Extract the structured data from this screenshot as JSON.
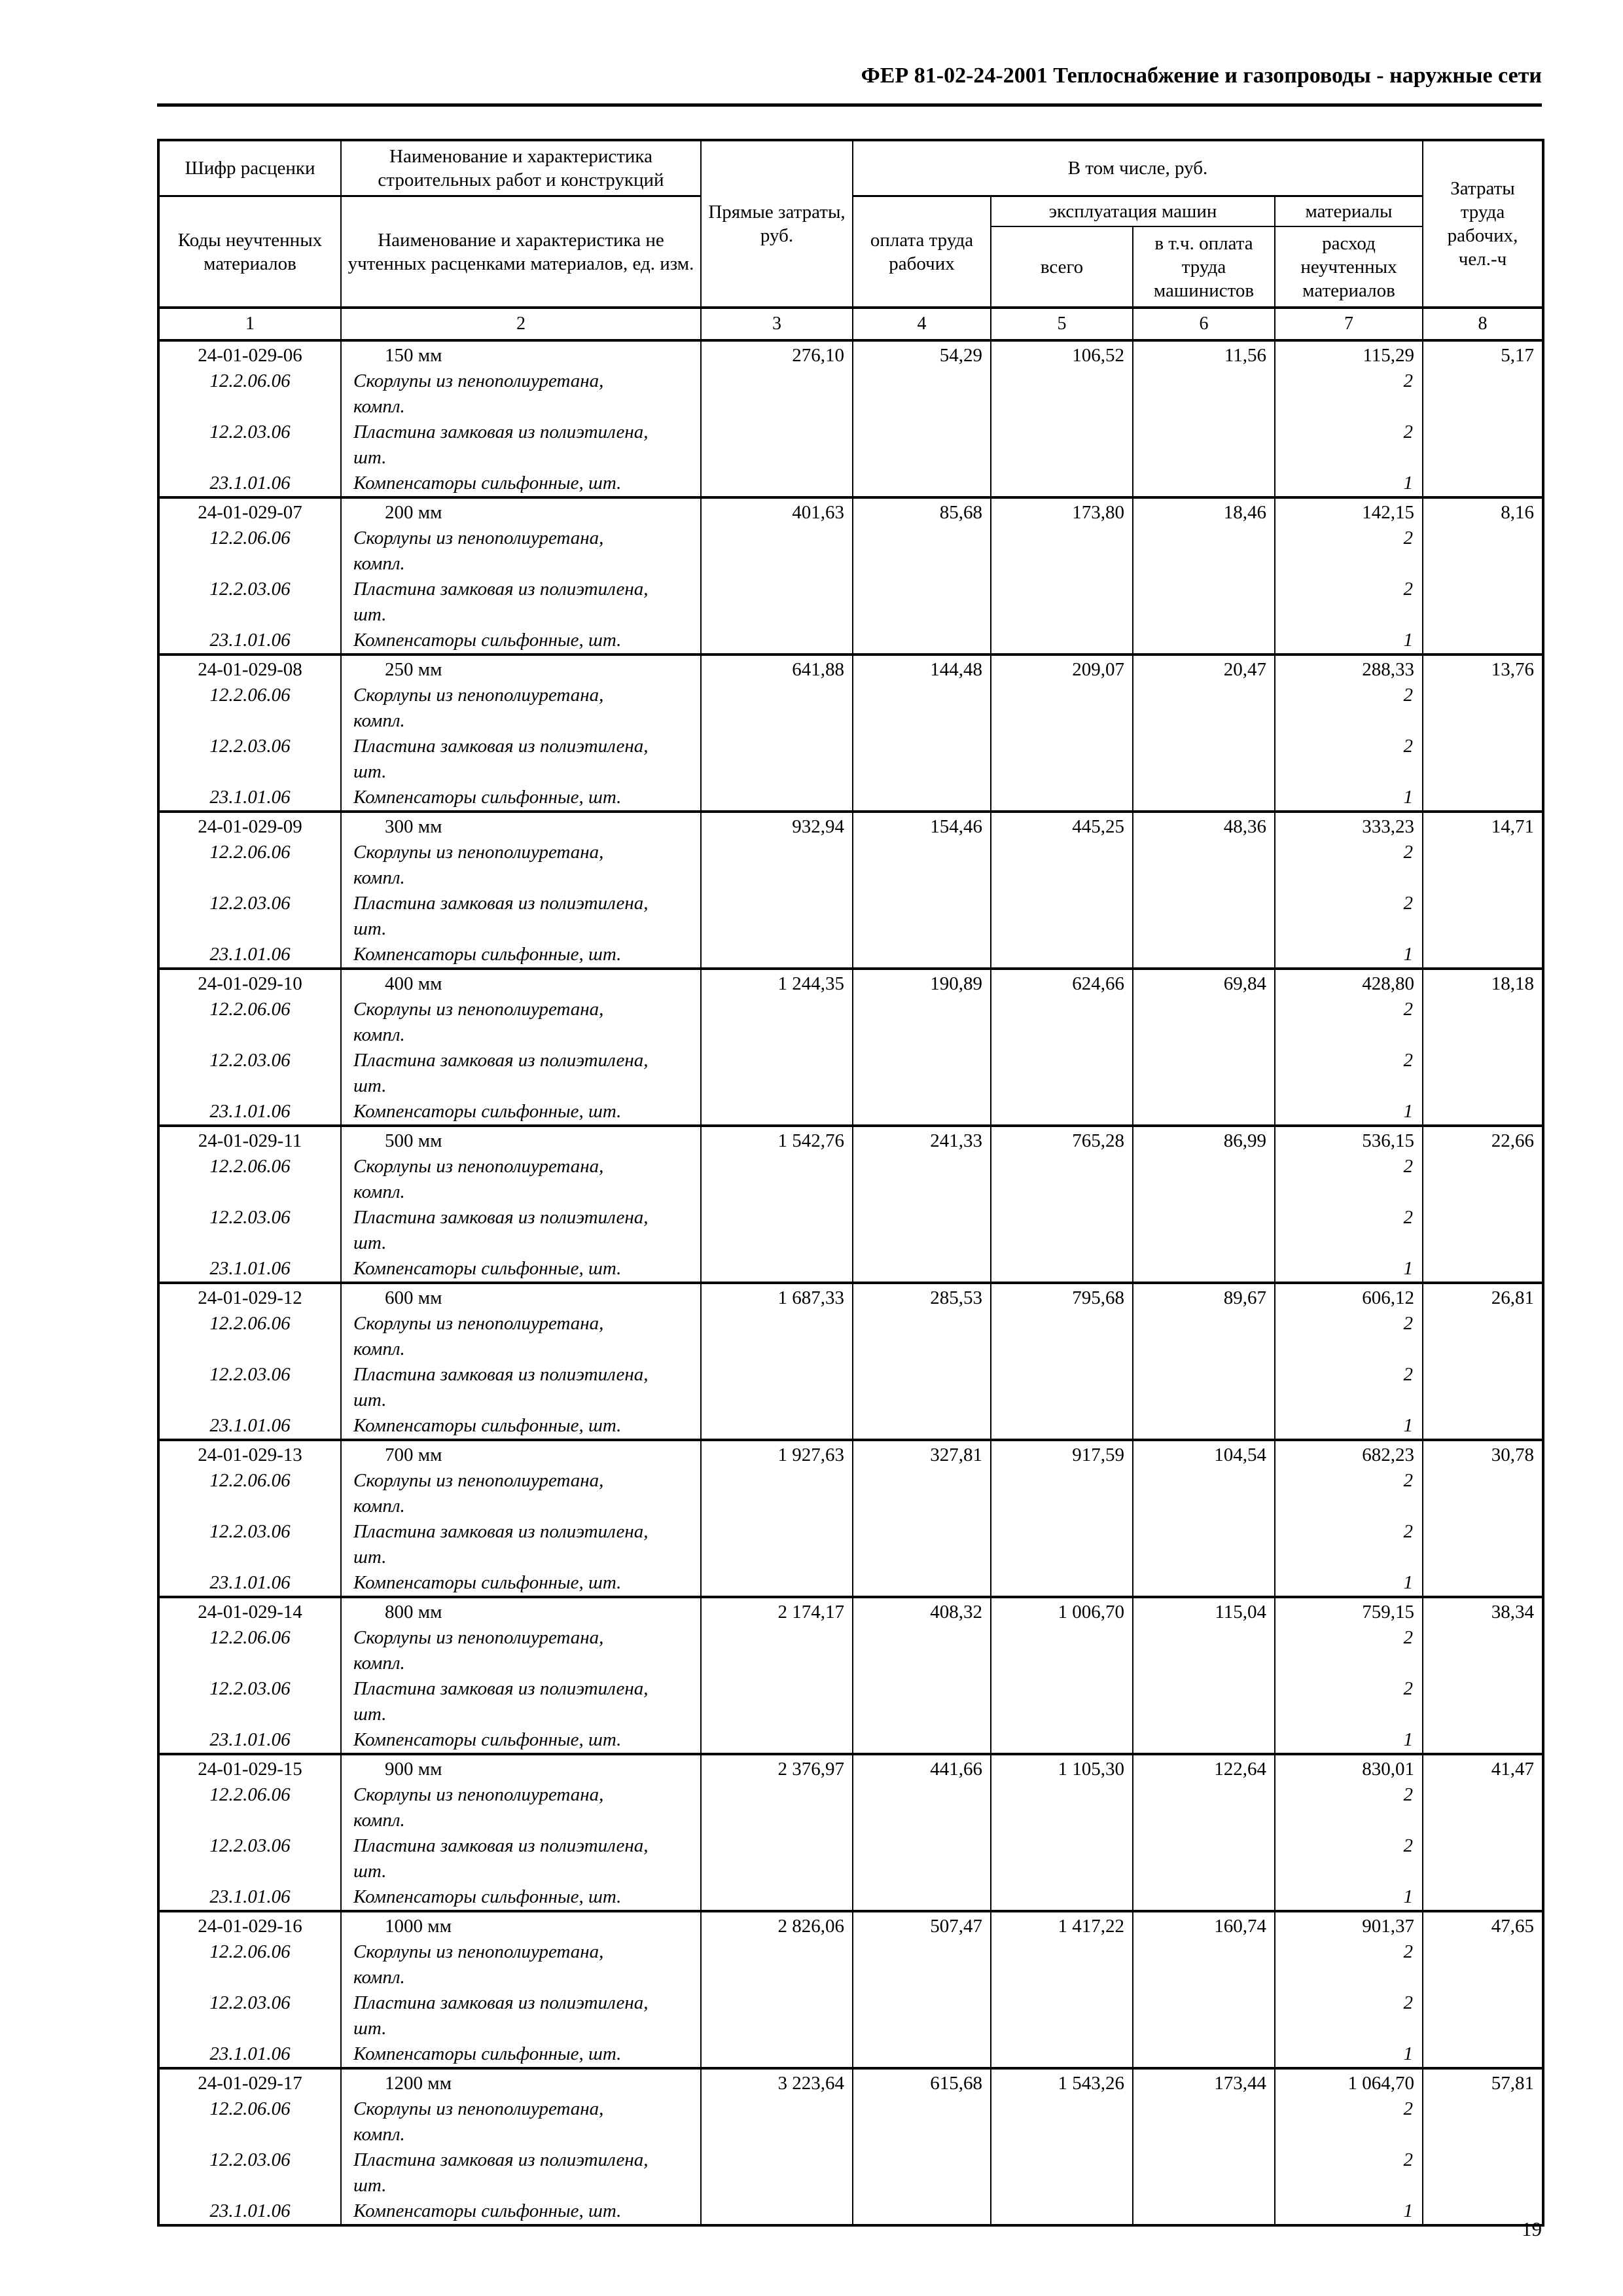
{
  "page": {
    "header_title": "ФЕР 81-02-24-2001 Теплоснабжение и газопроводы - наружные сети",
    "page_number": "19"
  },
  "table": {
    "header": {
      "col1_top": "Шифр расценки",
      "col1_bottom": "Коды неучтенных материалов",
      "col2_top": "Наименование и характеристика строительных работ и конструкций",
      "col2_bottom": "Наименование и характеристика не учтенных расценками материалов, ед. изм.",
      "col3": "Прямые затраты, руб.",
      "group_incl": "В том числе, руб.",
      "col4": "оплата труда рабочих",
      "group_machines": "эксплуатация машин",
      "col5": "всего",
      "col6": "в т.ч. оплата труда машинистов",
      "group_materials": "материалы",
      "col7": "расход неучтенных материалов",
      "col8": "Затраты труда рабочих, чел.-ч",
      "numbers": [
        "1",
        "2",
        "3",
        "4",
        "5",
        "6",
        "7",
        "8"
      ]
    },
    "rows": [
      {
        "code": "24-01-029-06",
        "name": "150 мм",
        "direct": "276,10",
        "labor_pay": "54,29",
        "machines_total": "106,52",
        "machinists_pay": "11,56",
        "materials": "115,29",
        "labor_hours": "5,17",
        "sub": [
          {
            "code": "12.2.06.06",
            "name": "Скорлупы из пенополиуретана,",
            "unit": "компл.",
            "qty": "2"
          },
          {
            "code": "12.2.03.06",
            "name": "Пластина замковая из полиэтилена,",
            "unit": "шт.",
            "qty": "2"
          },
          {
            "code": "23.1.01.06",
            "name": "Компенсаторы сильфонные, шт.",
            "unit": "",
            "qty": "1"
          }
        ]
      },
      {
        "code": "24-01-029-07",
        "name": "200 мм",
        "direct": "401,63",
        "labor_pay": "85,68",
        "machines_total": "173,80",
        "machinists_pay": "18,46",
        "materials": "142,15",
        "labor_hours": "8,16",
        "sub": [
          {
            "code": "12.2.06.06",
            "name": "Скорлупы из пенополиуретана,",
            "unit": "компл.",
            "qty": "2"
          },
          {
            "code": "12.2.03.06",
            "name": "Пластина замковая из полиэтилена,",
            "unit": "шт.",
            "qty": "2"
          },
          {
            "code": "23.1.01.06",
            "name": "Компенсаторы сильфонные, шт.",
            "unit": "",
            "qty": "1"
          }
        ]
      },
      {
        "code": "24-01-029-08",
        "name": "250 мм",
        "direct": "641,88",
        "labor_pay": "144,48",
        "machines_total": "209,07",
        "machinists_pay": "20,47",
        "materials": "288,33",
        "labor_hours": "13,76",
        "sub": [
          {
            "code": "12.2.06.06",
            "name": "Скорлупы из пенополиуретана,",
            "unit": "компл.",
            "qty": "2"
          },
          {
            "code": "12.2.03.06",
            "name": "Пластина замковая из полиэтилена,",
            "unit": "шт.",
            "qty": "2"
          },
          {
            "code": "23.1.01.06",
            "name": "Компенсаторы сильфонные, шт.",
            "unit": "",
            "qty": "1"
          }
        ]
      },
      {
        "code": "24-01-029-09",
        "name": "300 мм",
        "direct": "932,94",
        "labor_pay": "154,46",
        "machines_total": "445,25",
        "machinists_pay": "48,36",
        "materials": "333,23",
        "labor_hours": "14,71",
        "sub": [
          {
            "code": "12.2.06.06",
            "name": "Скорлупы из пенополиуретана,",
            "unit": "компл.",
            "qty": "2"
          },
          {
            "code": "12.2.03.06",
            "name": "Пластина замковая из полиэтилена,",
            "unit": "шт.",
            "qty": "2"
          },
          {
            "code": "23.1.01.06",
            "name": "Компенсаторы сильфонные, шт.",
            "unit": "",
            "qty": "1"
          }
        ]
      },
      {
        "code": "24-01-029-10",
        "name": "400 мм",
        "direct": "1 244,35",
        "labor_pay": "190,89",
        "machines_total": "624,66",
        "machinists_pay": "69,84",
        "materials": "428,80",
        "labor_hours": "18,18",
        "sub": [
          {
            "code": "12.2.06.06",
            "name": "Скорлупы из пенополиуретана,",
            "unit": "компл.",
            "qty": "2"
          },
          {
            "code": "12.2.03.06",
            "name": "Пластина замковая из полиэтилена,",
            "unit": "шт.",
            "qty": "2"
          },
          {
            "code": "23.1.01.06",
            "name": "Компенсаторы сильфонные, шт.",
            "unit": "",
            "qty": "1"
          }
        ]
      },
      {
        "code": "24-01-029-11",
        "name": "500 мм",
        "direct": "1 542,76",
        "labor_pay": "241,33",
        "machines_total": "765,28",
        "machinists_pay": "86,99",
        "materials": "536,15",
        "labor_hours": "22,66",
        "sub": [
          {
            "code": "12.2.06.06",
            "name": "Скорлупы из пенополиуретана,",
            "unit": "компл.",
            "qty": "2"
          },
          {
            "code": "12.2.03.06",
            "name": "Пластина замковая из полиэтилена,",
            "unit": "шт.",
            "qty": "2"
          },
          {
            "code": "23.1.01.06",
            "name": "Компенсаторы сильфонные, шт.",
            "unit": "",
            "qty": "1"
          }
        ]
      },
      {
        "code": "24-01-029-12",
        "name": "600 мм",
        "direct": "1 687,33",
        "labor_pay": "285,53",
        "machines_total": "795,68",
        "machinists_pay": "89,67",
        "materials": "606,12",
        "labor_hours": "26,81",
        "sub": [
          {
            "code": "12.2.06.06",
            "name": "Скорлупы из пенополиуретана,",
            "unit": "компл.",
            "qty": "2"
          },
          {
            "code": "12.2.03.06",
            "name": "Пластина замковая из полиэтилена,",
            "unit": "шт.",
            "qty": "2"
          },
          {
            "code": "23.1.01.06",
            "name": "Компенсаторы сильфонные, шт.",
            "unit": "",
            "qty": "1"
          }
        ]
      },
      {
        "code": "24-01-029-13",
        "name": "700 мм",
        "direct": "1 927,63",
        "labor_pay": "327,81",
        "machines_total": "917,59",
        "machinists_pay": "104,54",
        "materials": "682,23",
        "labor_hours": "30,78",
        "sub": [
          {
            "code": "12.2.06.06",
            "name": "Скорлупы из пенополиуретана,",
            "unit": "компл.",
            "qty": "2"
          },
          {
            "code": "12.2.03.06",
            "name": "Пластина замковая из полиэтилена,",
            "unit": "шт.",
            "qty": "2"
          },
          {
            "code": "23.1.01.06",
            "name": "Компенсаторы сильфонные, шт.",
            "unit": "",
            "qty": "1"
          }
        ]
      },
      {
        "code": "24-01-029-14",
        "name": "800 мм",
        "direct": "2 174,17",
        "labor_pay": "408,32",
        "machines_total": "1 006,70",
        "machinists_pay": "115,04",
        "materials": "759,15",
        "labor_hours": "38,34",
        "sub": [
          {
            "code": "12.2.06.06",
            "name": "Скорлупы из пенополиуретана,",
            "unit": "компл.",
            "qty": "2"
          },
          {
            "code": "12.2.03.06",
            "name": "Пластина замковая из полиэтилена,",
            "unit": "шт.",
            "qty": "2"
          },
          {
            "code": "23.1.01.06",
            "name": "Компенсаторы сильфонные, шт.",
            "unit": "",
            "qty": "1"
          }
        ]
      },
      {
        "code": "24-01-029-15",
        "name": "900 мм",
        "direct": "2 376,97",
        "labor_pay": "441,66",
        "machines_total": "1 105,30",
        "machinists_pay": "122,64",
        "materials": "830,01",
        "labor_hours": "41,47",
        "sub": [
          {
            "code": "12.2.06.06",
            "name": "Скорлупы из пенополиуретана,",
            "unit": "компл.",
            "qty": "2"
          },
          {
            "code": "12.2.03.06",
            "name": "Пластина замковая из полиэтилена,",
            "unit": "шт.",
            "qty": "2"
          },
          {
            "code": "23.1.01.06",
            "name": "Компенсаторы сильфонные, шт.",
            "unit": "",
            "qty": "1"
          }
        ]
      },
      {
        "code": "24-01-029-16",
        "name": "1000 мм",
        "direct": "2 826,06",
        "labor_pay": "507,47",
        "machines_total": "1 417,22",
        "machinists_pay": "160,74",
        "materials": "901,37",
        "labor_hours": "47,65",
        "sub": [
          {
            "code": "12.2.06.06",
            "name": "Скорлупы из пенополиуретана,",
            "unit": "компл.",
            "qty": "2"
          },
          {
            "code": "12.2.03.06",
            "name": "Пластина замковая из полиэтилена,",
            "unit": "шт.",
            "qty": "2"
          },
          {
            "code": "23.1.01.06",
            "name": "Компенсаторы сильфонные, шт.",
            "unit": "",
            "qty": "1"
          }
        ]
      },
      {
        "code": "24-01-029-17",
        "name": "1200 мм",
        "direct": "3 223,64",
        "labor_pay": "615,68",
        "machines_total": "1 543,26",
        "machinists_pay": "173,44",
        "materials": "1 064,70",
        "labor_hours": "57,81",
        "sub": [
          {
            "code": "12.2.06.06",
            "name": "Скорлупы из пенополиуретана,",
            "unit": "компл.",
            "qty": "2"
          },
          {
            "code": "12.2.03.06",
            "name": "Пластина замковая из полиэтилена,",
            "unit": "шт.",
            "qty": "2"
          },
          {
            "code": "23.1.01.06",
            "name": "Компенсаторы сильфонные, шт.",
            "unit": "",
            "qty": "1"
          }
        ]
      }
    ]
  }
}
